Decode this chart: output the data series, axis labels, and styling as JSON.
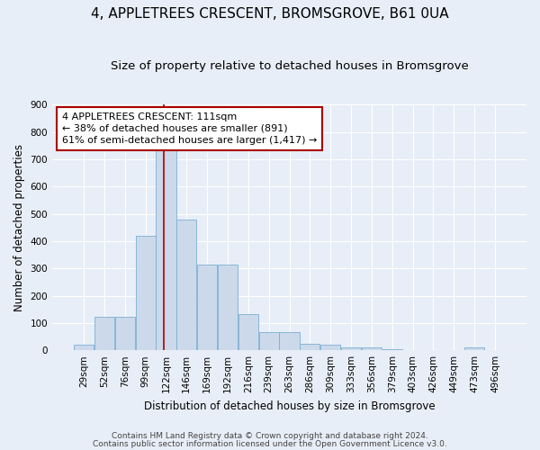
{
  "title": "4, APPLETREES CRESCENT, BROMSGROVE, B61 0UA",
  "subtitle": "Size of property relative to detached houses in Bromsgrove",
  "xlabel": "Distribution of detached houses by size in Bromsgrove",
  "ylabel": "Number of detached properties",
  "bar_color": "#ccd9ea",
  "bar_edge_color": "#7bafd4",
  "categories": [
    "29sqm",
    "52sqm",
    "76sqm",
    "99sqm",
    "122sqm",
    "146sqm",
    "169sqm",
    "192sqm",
    "216sqm",
    "239sqm",
    "263sqm",
    "286sqm",
    "309sqm",
    "333sqm",
    "356sqm",
    "379sqm",
    "403sqm",
    "426sqm",
    "449sqm",
    "473sqm",
    "496sqm"
  ],
  "values": [
    20,
    122,
    122,
    420,
    735,
    480,
    315,
    315,
    132,
    65,
    65,
    25,
    20,
    10,
    10,
    3,
    0,
    0,
    0,
    10,
    0
  ],
  "property_line_color": "#aa0000",
  "annotation_text": "4 APPLETREES CRESCENT: 111sqm\n← 38% of detached houses are smaller (891)\n61% of semi-detached houses are larger (1,417) →",
  "annotation_box_color": "#ffffff",
  "annotation_box_edge": "#aa0000",
  "ylim": [
    0,
    900
  ],
  "yticks": [
    0,
    100,
    200,
    300,
    400,
    500,
    600,
    700,
    800,
    900
  ],
  "footer1": "Contains HM Land Registry data © Crown copyright and database right 2024.",
  "footer2": "Contains public sector information licensed under the Open Government Licence v3.0.",
  "background_color": "#e8eef7",
  "plot_background": "#e8eef7",
  "grid_color": "#ffffff",
  "title_fontsize": 11,
  "subtitle_fontsize": 9.5,
  "axis_label_fontsize": 8.5,
  "tick_fontsize": 7.5,
  "annotation_fontsize": 8
}
